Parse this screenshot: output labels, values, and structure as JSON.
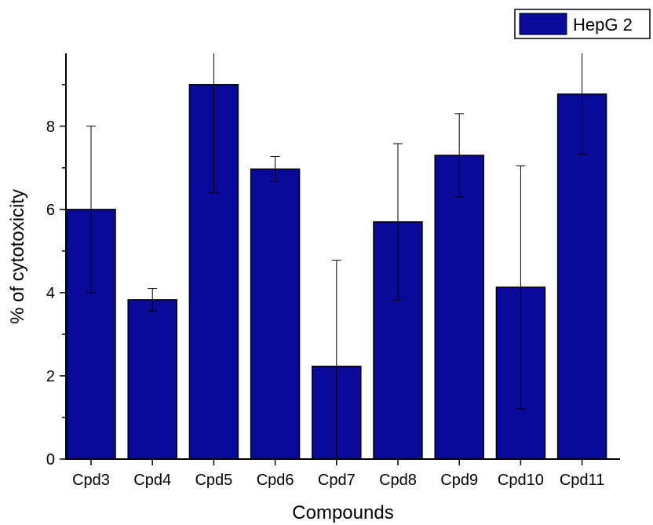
{
  "chart_data": {
    "type": "bar",
    "categories": [
      "Cpd3",
      "Cpd4",
      "Cpd5",
      "Cpd6",
      "Cpd7",
      "Cpd8",
      "Cpd9",
      "Cpd10",
      "Cpd11"
    ],
    "series": [
      {
        "name": "HepG 2",
        "values": [
          6.0,
          3.83,
          9.0,
          6.97,
          2.23,
          5.7,
          7.3,
          4.13,
          8.77
        ],
        "errors": [
          2.0,
          0.27,
          2.6,
          0.3,
          2.55,
          1.88,
          1.0,
          2.92,
          1.45
        ],
        "color": "#0a0a9a"
      }
    ],
    "title": "",
    "xlabel": "Compounds",
    "ylabel": "% of cytotoxicity",
    "ylim": [
      0,
      9.75
    ],
    "yticks": [
      0,
      2,
      4,
      6,
      8
    ],
    "legend_position": "top-right",
    "grid": false
  }
}
